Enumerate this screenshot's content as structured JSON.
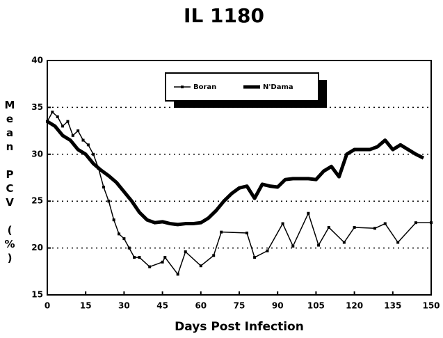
{
  "chart_data": {
    "type": "line",
    "title": "IL 1180",
    "x_label": "Days Post Infection",
    "y_label": "Mean PCV (%)",
    "xlim": [
      0,
      150
    ],
    "xticks": [
      0,
      15,
      30,
      45,
      60,
      75,
      90,
      105,
      120,
      135,
      150
    ],
    "ylim": [
      15,
      40
    ],
    "yticks": [
      15,
      20,
      25,
      30,
      35,
      40
    ],
    "grid": "dotted",
    "legend": "upper center",
    "series": [
      {
        "name": "Boran",
        "color": "#000000",
        "marker": "square",
        "x": [
          0,
          2,
          4,
          6,
          8,
          10,
          12,
          14,
          16,
          18,
          20,
          22,
          24,
          26,
          28,
          30,
          32,
          34,
          36,
          40,
          45,
          46,
          51,
          54,
          60,
          65,
          68,
          78,
          81,
          86,
          92,
          96,
          102,
          106,
          110,
          116,
          120,
          128,
          132,
          137,
          144,
          150
        ],
        "values": [
          33.5,
          34.5,
          34,
          33,
          33.5,
          32,
          32.5,
          31.5,
          31,
          30,
          28.5,
          26.5,
          25,
          23,
          21.5,
          21,
          20,
          19,
          19,
          18,
          18.5,
          19,
          17.2,
          19.6,
          18.1,
          19.2,
          21.7,
          21.6,
          19,
          19.7,
          22.6,
          20.2,
          23.7,
          20.3,
          22.2,
          20.6,
          22.2,
          22.1,
          22.6,
          20.6,
          22.7,
          22.7
        ]
      },
      {
        "name": "N'Dama",
        "color": "#000000",
        "x": [
          0,
          3,
          6,
          9,
          12,
          15,
          18,
          21,
          24,
          27,
          30,
          33,
          36,
          39,
          42,
          45,
          48,
          51,
          54,
          57,
          60,
          63,
          66,
          69,
          72,
          75,
          78,
          81,
          84,
          87,
          90,
          93,
          96,
          99,
          102,
          105,
          108,
          111,
          114,
          117,
          120,
          123,
          126,
          129,
          132,
          135,
          138,
          141,
          144,
          147
        ],
        "values": [
          33.5,
          33,
          32,
          31.5,
          30.5,
          30,
          29,
          28.3,
          27.7,
          27,
          26,
          25,
          23.8,
          23,
          22.7,
          22.8,
          22.6,
          22.5,
          22.6,
          22.6,
          22.7,
          23.2,
          24,
          25,
          25.8,
          26.4,
          26.6,
          25.3,
          26.8,
          26.6,
          26.5,
          27.3,
          27.4,
          27.4,
          27.4,
          27.3,
          28.2,
          28.7,
          27.6,
          30,
          30.5,
          30.5,
          30.5,
          30.8,
          31.5,
          30.5,
          31,
          30.5,
          30,
          29.6
        ]
      }
    ]
  }
}
